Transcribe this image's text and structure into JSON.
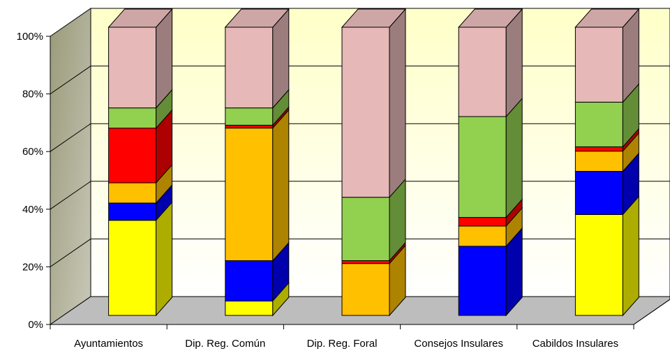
{
  "chart_data": {
    "type": "bar",
    "stacked": true,
    "percent": true,
    "three_d": true,
    "categories": [
      "Ayuntamientos",
      "Dip. Reg. Común",
      "Dip. Reg. Foral",
      "Consejos Insulares",
      "Cabildos Insulares"
    ],
    "series": [
      {
        "color": "#FFFF00",
        "values": [
          33,
          5,
          0,
          0,
          35
        ]
      },
      {
        "color": "#0000FF",
        "values": [
          6,
          14,
          0,
          24,
          15
        ]
      },
      {
        "color": "#FFC000",
        "values": [
          7,
          46,
          18,
          7,
          7
        ]
      },
      {
        "color": "#FF0000",
        "values": [
          19,
          1,
          1,
          3,
          1.5
        ]
      },
      {
        "color": "#92D050",
        "values": [
          7,
          6,
          22,
          35,
          15.5
        ]
      },
      {
        "color": "#E6B8B8",
        "values": [
          28,
          28,
          59,
          31,
          26
        ]
      }
    ],
    "ylim": [
      0,
      100
    ],
    "yticks": [
      "0%",
      "20%",
      "40%",
      "60%",
      "80%",
      "100%"
    ],
    "grid": true,
    "legend": "none"
  }
}
